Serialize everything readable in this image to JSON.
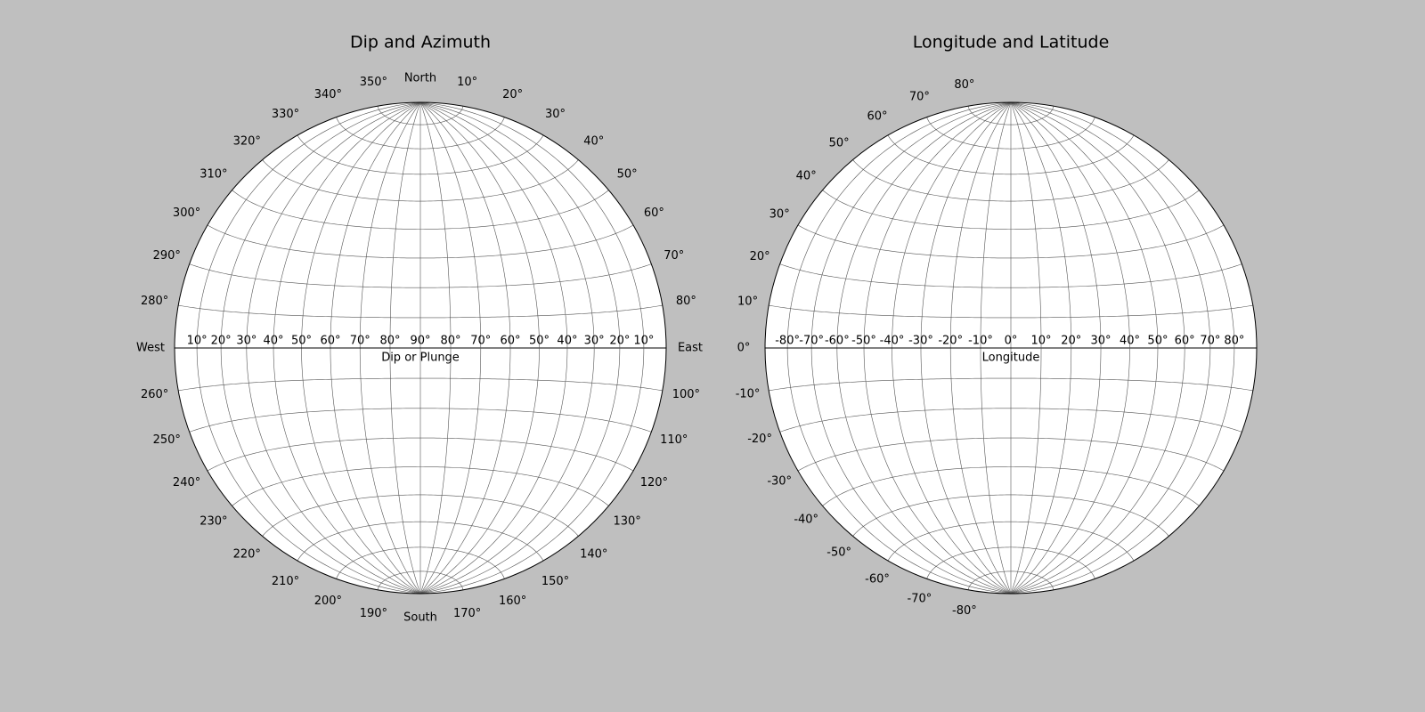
{
  "chart_data": [
    {
      "type": "stereonet",
      "title": "Dip and Azimuth",
      "xlabel": "Dip or Plunge",
      "grid": true,
      "xticks": [
        {
          "value": -80,
          "label": "10°"
        },
        {
          "value": -70,
          "label": "20°"
        },
        {
          "value": -60,
          "label": "30°"
        },
        {
          "value": -50,
          "label": "40°"
        },
        {
          "value": -40,
          "label": "50°"
        },
        {
          "value": -30,
          "label": "60°"
        },
        {
          "value": -20,
          "label": "70°"
        },
        {
          "value": -10,
          "label": "80°"
        },
        {
          "value": 0,
          "label": "90°"
        },
        {
          "value": 10,
          "label": "80°"
        },
        {
          "value": 20,
          "label": "70°"
        },
        {
          "value": 30,
          "label": "60°"
        },
        {
          "value": 40,
          "label": "50°"
        },
        {
          "value": 50,
          "label": "40°"
        },
        {
          "value": 60,
          "label": "30°"
        },
        {
          "value": 70,
          "label": "20°"
        },
        {
          "value": 80,
          "label": "10°"
        }
      ],
      "azimuth_ticks": [
        {
          "value": 0,
          "label": "North"
        },
        {
          "value": 10,
          "label": "10°"
        },
        {
          "value": 20,
          "label": "20°"
        },
        {
          "value": 30,
          "label": "30°"
        },
        {
          "value": 40,
          "label": "40°"
        },
        {
          "value": 50,
          "label": "50°"
        },
        {
          "value": 60,
          "label": "60°"
        },
        {
          "value": 70,
          "label": "70°"
        },
        {
          "value": 80,
          "label": "80°"
        },
        {
          "value": 90,
          "label": "East"
        },
        {
          "value": 100,
          "label": "100°"
        },
        {
          "value": 110,
          "label": "110°"
        },
        {
          "value": 120,
          "label": "120°"
        },
        {
          "value": 130,
          "label": "130°"
        },
        {
          "value": 140,
          "label": "140°"
        },
        {
          "value": 150,
          "label": "150°"
        },
        {
          "value": 160,
          "label": "160°"
        },
        {
          "value": 170,
          "label": "170°"
        },
        {
          "value": 180,
          "label": "South"
        },
        {
          "value": 190,
          "label": "190°"
        },
        {
          "value": 200,
          "label": "200°"
        },
        {
          "value": 210,
          "label": "210°"
        },
        {
          "value": 220,
          "label": "220°"
        },
        {
          "value": 230,
          "label": "230°"
        },
        {
          "value": 240,
          "label": "240°"
        },
        {
          "value": 250,
          "label": "250°"
        },
        {
          "value": 260,
          "label": "260°"
        },
        {
          "value": 270,
          "label": "West"
        },
        {
          "value": 280,
          "label": "280°"
        },
        {
          "value": 290,
          "label": "290°"
        },
        {
          "value": 300,
          "label": "300°"
        },
        {
          "value": 310,
          "label": "310°"
        },
        {
          "value": 320,
          "label": "320°"
        },
        {
          "value": 330,
          "label": "330°"
        },
        {
          "value": 340,
          "label": "340°"
        },
        {
          "value": 350,
          "label": "350°"
        }
      ]
    },
    {
      "type": "stereonet",
      "title": "Longitude and Latitude",
      "xlabel": "Longitude",
      "grid": true,
      "xticks": [
        {
          "value": -80,
          "label": "-80°"
        },
        {
          "value": -70,
          "label": "-70°"
        },
        {
          "value": -60,
          "label": "-60°"
        },
        {
          "value": -50,
          "label": "-50°"
        },
        {
          "value": -40,
          "label": "-40°"
        },
        {
          "value": -30,
          "label": "-30°"
        },
        {
          "value": -20,
          "label": "-20°"
        },
        {
          "value": -10,
          "label": "-10°"
        },
        {
          "value": 0,
          "label": "0°"
        },
        {
          "value": 10,
          "label": "10°"
        },
        {
          "value": 20,
          "label": "20°"
        },
        {
          "value": 30,
          "label": "30°"
        },
        {
          "value": 40,
          "label": "40°"
        },
        {
          "value": 50,
          "label": "50°"
        },
        {
          "value": 60,
          "label": "60°"
        },
        {
          "value": 70,
          "label": "70°"
        },
        {
          "value": 80,
          "label": "80°"
        }
      ],
      "yticks": [
        {
          "value": -80,
          "label": "-80°"
        },
        {
          "value": -70,
          "label": "-70°"
        },
        {
          "value": -60,
          "label": "-60°"
        },
        {
          "value": -50,
          "label": "-50°"
        },
        {
          "value": -40,
          "label": "-40°"
        },
        {
          "value": -30,
          "label": "-30°"
        },
        {
          "value": -20,
          "label": "-20°"
        },
        {
          "value": -10,
          "label": "-10°"
        },
        {
          "value": 0,
          "label": "0°"
        },
        {
          "value": 10,
          "label": "10°"
        },
        {
          "value": 20,
          "label": "20°"
        },
        {
          "value": 30,
          "label": "30°"
        },
        {
          "value": 40,
          "label": "40°"
        },
        {
          "value": 50,
          "label": "50°"
        },
        {
          "value": 60,
          "label": "60°"
        },
        {
          "value": 70,
          "label": "70°"
        },
        {
          "value": 80,
          "label": "80°"
        }
      ]
    }
  ]
}
